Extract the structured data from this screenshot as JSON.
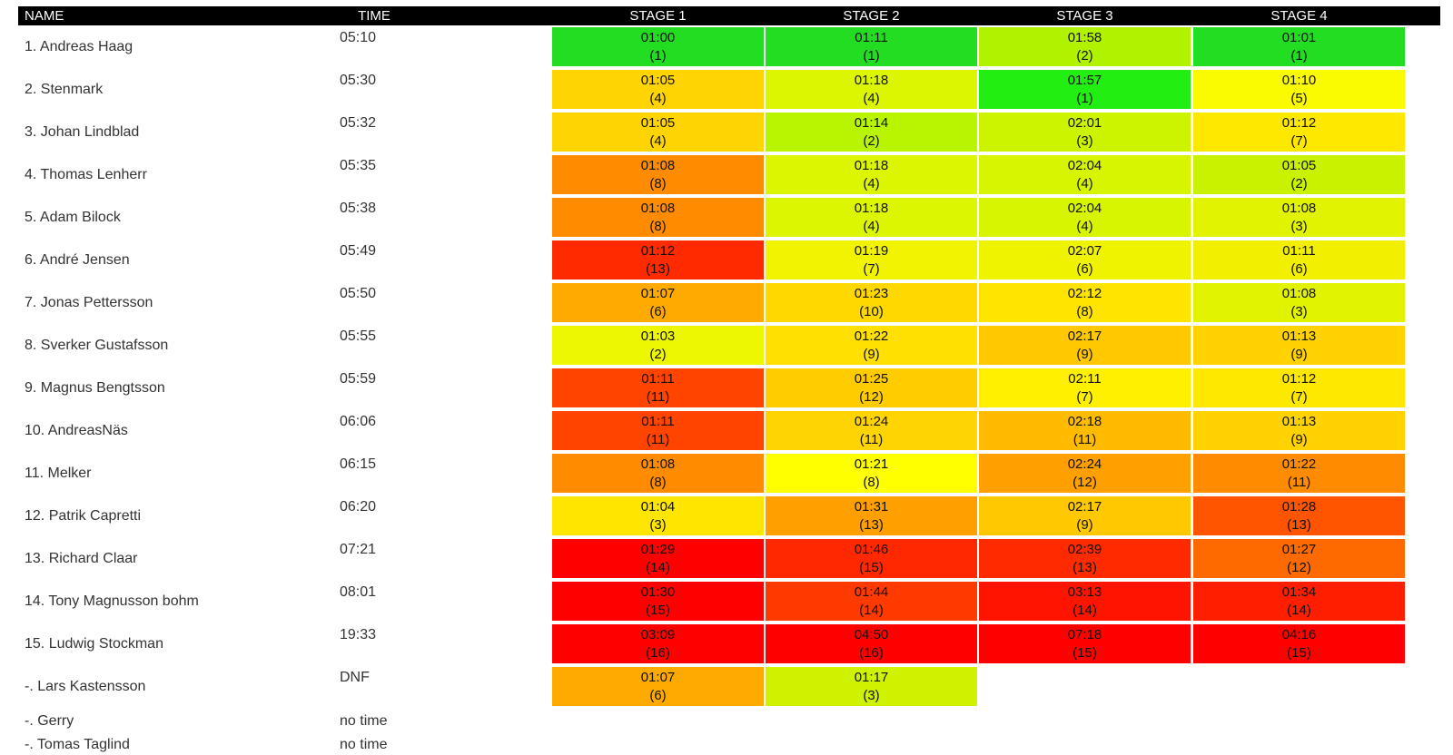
{
  "headers": {
    "name": "NAME",
    "time": "TIME",
    "stages": [
      "STAGE 1",
      "STAGE 2",
      "STAGE 3",
      "STAGE 4"
    ]
  },
  "rows": [
    {
      "name": "1. Andreas Haag",
      "time": "05:10",
      "stages": [
        {
          "time": "01:00",
          "rank": "(1)",
          "color": "#22dd22"
        },
        {
          "time": "01:11",
          "rank": "(1)",
          "color": "#22dd22"
        },
        {
          "time": "01:58",
          "rank": "(2)",
          "color": "#b0f200"
        },
        {
          "time": "01:01",
          "rank": "(1)",
          "color": "#22dd22"
        }
      ]
    },
    {
      "name": "2. Stenmark",
      "time": "05:30",
      "stages": [
        {
          "time": "01:05",
          "rank": "(4)",
          "color": "#ffd400"
        },
        {
          "time": "01:18",
          "rank": "(4)",
          "color": "#dcf500"
        },
        {
          "time": "01:57",
          "rank": "(1)",
          "color": "#22ee11"
        },
        {
          "time": "01:10",
          "rank": "(5)",
          "color": "#fafa00"
        }
      ]
    },
    {
      "name": "3. Johan Lindblad",
      "time": "05:32",
      "stages": [
        {
          "time": "01:05",
          "rank": "(4)",
          "color": "#ffd400"
        },
        {
          "time": "01:14",
          "rank": "(2)",
          "color": "#b9f500"
        },
        {
          "time": "02:01",
          "rank": "(3)",
          "color": "#ccf300"
        },
        {
          "time": "01:12",
          "rank": "(7)",
          "color": "#ffe800"
        }
      ]
    },
    {
      "name": "4. Thomas Lenherr",
      "time": "05:35",
      "stages": [
        {
          "time": "01:08",
          "rank": "(8)",
          "color": "#ff8c00"
        },
        {
          "time": "01:18",
          "rank": "(4)",
          "color": "#dcf500"
        },
        {
          "time": "02:04",
          "rank": "(4)",
          "color": "#d7f500"
        },
        {
          "time": "01:05",
          "rank": "(2)",
          "color": "#c9f200"
        }
      ]
    },
    {
      "name": "5. Adam Bilock",
      "time": "05:38",
      "stages": [
        {
          "time": "01:08",
          "rank": "(8)",
          "color": "#ff8c00"
        },
        {
          "time": "01:18",
          "rank": "(4)",
          "color": "#dcf500"
        },
        {
          "time": "02:04",
          "rank": "(4)",
          "color": "#d7f500"
        },
        {
          "time": "01:08",
          "rank": "(3)",
          "color": "#e2f300"
        }
      ]
    },
    {
      "name": "6. André Jensen",
      "time": "05:49",
      "stages": [
        {
          "time": "01:12",
          "rank": "(13)",
          "color": "#ff2a00"
        },
        {
          "time": "01:19",
          "rank": "(7)",
          "color": "#f2f300"
        },
        {
          "time": "02:07",
          "rank": "(6)",
          "color": "#f0f300"
        },
        {
          "time": "01:11",
          "rank": "(6)",
          "color": "#f2f000"
        }
      ]
    },
    {
      "name": "7. Jonas Pettersson",
      "time": "05:50",
      "stages": [
        {
          "time": "01:07",
          "rank": "(6)",
          "color": "#ffaa00"
        },
        {
          "time": "01:23",
          "rank": "(10)",
          "color": "#ffd800"
        },
        {
          "time": "02:12",
          "rank": "(8)",
          "color": "#ffe400"
        },
        {
          "time": "01:08",
          "rank": "(3)",
          "color": "#e2f300"
        }
      ]
    },
    {
      "name": "8. Sverker Gustafsson",
      "time": "05:55",
      "stages": [
        {
          "time": "01:03",
          "rank": "(2)",
          "color": "#ecf700"
        },
        {
          "time": "01:22",
          "rank": "(9)",
          "color": "#ffe000"
        },
        {
          "time": "02:17",
          "rank": "(9)",
          "color": "#ffc800"
        },
        {
          "time": "01:13",
          "rank": "(9)",
          "color": "#ffd200"
        }
      ]
    },
    {
      "name": "9. Magnus Bengtsson",
      "time": "05:59",
      "stages": [
        {
          "time": "01:11",
          "rank": "(11)",
          "color": "#ff4400"
        },
        {
          "time": "01:25",
          "rank": "(12)",
          "color": "#ffcc00"
        },
        {
          "time": "02:11",
          "rank": "(7)",
          "color": "#fff000"
        },
        {
          "time": "01:12",
          "rank": "(7)",
          "color": "#ffe800"
        }
      ]
    },
    {
      "name": "10. AndreasNäs",
      "time": "06:06",
      "stages": [
        {
          "time": "01:11",
          "rank": "(11)",
          "color": "#ff4400"
        },
        {
          "time": "01:24",
          "rank": "(11)",
          "color": "#ffd400"
        },
        {
          "time": "02:18",
          "rank": "(11)",
          "color": "#ffbb00"
        },
        {
          "time": "01:13",
          "rank": "(9)",
          "color": "#ffd200"
        }
      ]
    },
    {
      "name": "11. Melker",
      "time": "06:15",
      "stages": [
        {
          "time": "01:08",
          "rank": "(8)",
          "color": "#ff8c00"
        },
        {
          "time": "01:21",
          "rank": "(8)",
          "color": "#ffff00"
        },
        {
          "time": "02:24",
          "rank": "(12)",
          "color": "#ff9f00"
        },
        {
          "time": "01:22",
          "rank": "(11)",
          "color": "#ff8c00"
        }
      ]
    },
    {
      "name": "12. Patrik Capretti",
      "time": "06:20",
      "stages": [
        {
          "time": "01:04",
          "rank": "(3)",
          "color": "#ffe600"
        },
        {
          "time": "01:31",
          "rank": "(13)",
          "color": "#ffa000"
        },
        {
          "time": "02:17",
          "rank": "(9)",
          "color": "#ffc800"
        },
        {
          "time": "01:28",
          "rank": "(13)",
          "color": "#ff5500"
        }
      ]
    },
    {
      "name": "13. Richard Claar",
      "time": "07:21",
      "stages": [
        {
          "time": "01:29",
          "rank": "(14)",
          "color": "#ff0000"
        },
        {
          "time": "01:46",
          "rank": "(15)",
          "color": "#ff2800"
        },
        {
          "time": "02:39",
          "rank": "(13)",
          "color": "#ff2a00"
        },
        {
          "time": "01:27",
          "rank": "(12)",
          "color": "#ff6a00"
        }
      ]
    },
    {
      "name": "14. Tony Magnusson bohm",
      "time": "08:01",
      "stages": [
        {
          "time": "01:30",
          "rank": "(15)",
          "color": "#ff0000"
        },
        {
          "time": "01:44",
          "rank": "(14)",
          "color": "#ff3a00"
        },
        {
          "time": "03:13",
          "rank": "(14)",
          "color": "#ff1400"
        },
        {
          "time": "01:34",
          "rank": "(14)",
          "color": "#ff1e00"
        }
      ]
    },
    {
      "name": "15. Ludwig Stockman",
      "time": "19:33",
      "stages": [
        {
          "time": "03:09",
          "rank": "(16)",
          "color": "#ff0000"
        },
        {
          "time": "04:50",
          "rank": "(16)",
          "color": "#ff0000"
        },
        {
          "time": "07:18",
          "rank": "(15)",
          "color": "#ff0000"
        },
        {
          "time": "04:16",
          "rank": "(15)",
          "color": "#ff0000"
        }
      ]
    },
    {
      "name": "-. Lars Kastensson",
      "time": "DNF",
      "stages": [
        {
          "time": "01:07",
          "rank": "(6)",
          "color": "#ffaa00"
        },
        {
          "time": "01:17",
          "rank": "(3)",
          "color": "#d0f200"
        }
      ]
    },
    {
      "name": "-. Gerry",
      "time": "no time",
      "stages": []
    },
    {
      "name": "-. Tomas Taglind",
      "time": "no time",
      "stages": []
    }
  ]
}
